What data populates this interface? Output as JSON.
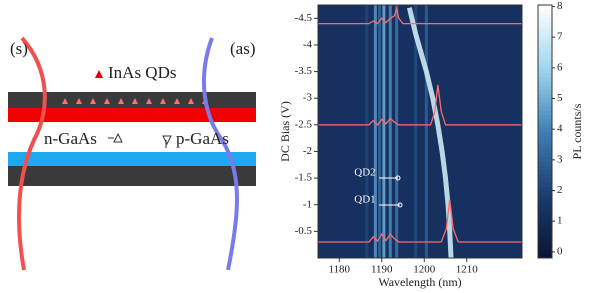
{
  "diagram": {
    "labels": {
      "s": "(s)",
      "as": "(as)",
      "qds": "InAs QDs",
      "n": "n-GaAs",
      "p": "p-GaAs"
    }
  },
  "chart_data": {
    "type": "heatmap",
    "xlabel": "Wavelength (nm)",
    "ylabel": "DC Bias (V)",
    "xlim": [
      1175,
      1223
    ],
    "ylim": [
      0,
      -4.75
    ],
    "xticks": [
      1180,
      1190,
      1200,
      1210
    ],
    "yticks": [
      -0.5,
      -1,
      -1.5,
      -2,
      -2.5,
      -3,
      -3.5,
      -4,
      -4.5
    ],
    "background": 1.3,
    "colorbar": {
      "label": "PL counts/s",
      "lim": [
        -0.2,
        8.05
      ],
      "ticks": [
        0,
        1,
        2,
        3,
        4,
        5,
        6,
        7,
        8
      ],
      "colors": [
        "#0a1434",
        "#1b3c70",
        "#3f7fb5",
        "#9fd6ee",
        "#ffffff"
      ]
    },
    "stripes": {
      "x": [
        1186.5,
        1188.5,
        1189.5,
        1190.5,
        1192,
        1193.5,
        1198,
        1200.5
      ],
      "values": [
        2.2,
        4.5,
        3.2,
        5.0,
        4.2,
        3.6,
        2.4,
        3.0
      ]
    },
    "emission": {
      "color": "#d8f4fc",
      "x": [
        1196.5,
        1198,
        1200.5,
        1202,
        1203.2,
        1204.2,
        1205,
        1205.6,
        1206,
        1206.3
      ],
      "values": [
        -4.7,
        -4.2,
        -3.5,
        -3.0,
        -2.5,
        -2.0,
        -1.5,
        -1.0,
        -0.5,
        0
      ]
    },
    "spectra": [
      {
        "color": "#ff6a6a",
        "x": [
          1175,
          1187,
          1188,
          1189,
          1190,
          1191,
          1192,
          1193,
          1193.5,
          1194,
          1195,
          1223
        ],
        "values": [
          -4.4,
          -4.4,
          -4.45,
          -4.4,
          -4.5,
          -4.42,
          -4.5,
          -4.55,
          -4.68,
          -4.5,
          -4.4,
          -4.4
        ]
      },
      {
        "color": "#ff6a6a",
        "x": [
          1175,
          1187,
          1188,
          1189,
          1190,
          1191,
          1192,
          1193,
          1194,
          1201.5,
          1202.5,
          1203.2,
          1204,
          1205,
          1223
        ],
        "values": [
          -2.5,
          -2.5,
          -2.58,
          -2.5,
          -2.6,
          -2.52,
          -2.62,
          -2.55,
          -2.5,
          -2.5,
          -2.75,
          -3.25,
          -2.75,
          -2.5,
          -2.5
        ]
      },
      {
        "color": "#ff6a6a",
        "x": [
          1175,
          1187,
          1188,
          1189,
          1190,
          1191,
          1192,
          1193,
          1194,
          1204,
          1205.2,
          1206,
          1206.8,
          1208,
          1223
        ],
        "values": [
          -0.3,
          -0.3,
          -0.4,
          -0.32,
          -0.45,
          -0.33,
          -0.45,
          -0.36,
          -0.3,
          -0.3,
          -0.55,
          -1.1,
          -0.55,
          -0.3,
          -0.3
        ]
      }
    ],
    "annotations": [
      "QD2",
      "QD1"
    ]
  }
}
